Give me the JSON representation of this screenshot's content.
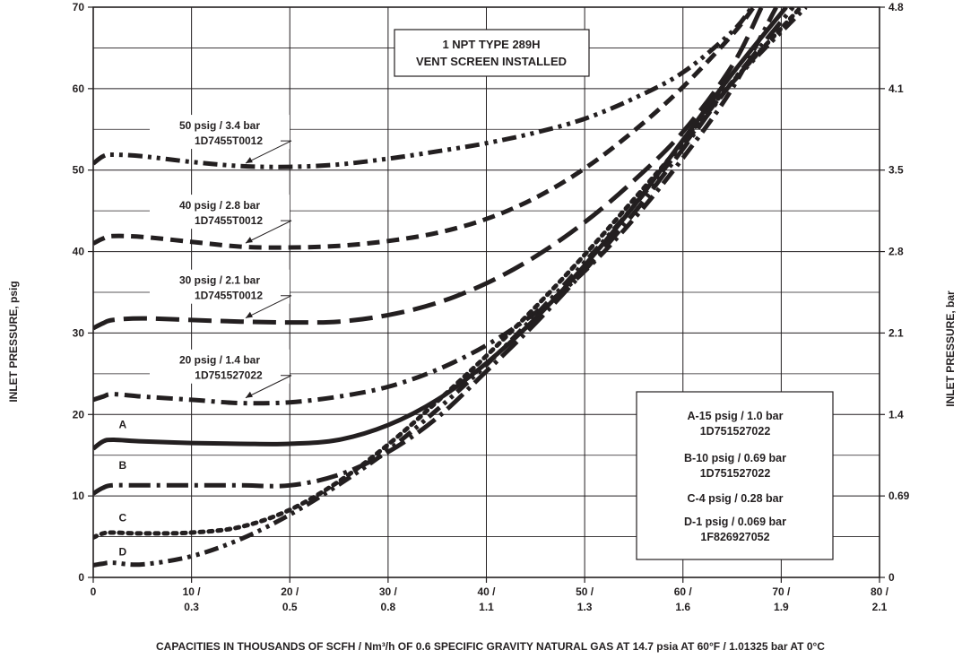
{
  "chart_data": {
    "type": "line",
    "title": "",
    "box_title_line1": "1 NPT TYPE 289H",
    "box_title_line2": "VENT SCREEN INSTALLED",
    "xlabel": "CAPACITIES IN THOUSANDS OF SCFH / Nm³/h OF 0.6 SPECIFIC GRAVITY NATURAL GAS AT 14.7 psia AT 60°F / 1.01325 bar AT 0°C",
    "ylabel_left": "INLET PRESSURE, psig",
    "ylabel_right": "INLET PRESSURE, bar",
    "xlim": [
      0,
      80
    ],
    "ylim": [
      0,
      70
    ],
    "grid": true,
    "x_ticks": [
      {
        "value": 0,
        "line1": "0",
        "line2": ""
      },
      {
        "value": 10,
        "line1": "10 /",
        "line2": "0.3"
      },
      {
        "value": 20,
        "line1": "20 /",
        "line2": "0.5"
      },
      {
        "value": 30,
        "line1": "30 /",
        "line2": "0.8"
      },
      {
        "value": 40,
        "line1": "40 /",
        "line2": "1.1"
      },
      {
        "value": 50,
        "line1": "50 /",
        "line2": "1.3"
      },
      {
        "value": 60,
        "line1": "60 /",
        "line2": "1.6"
      },
      {
        "value": 70,
        "line1": "70 /",
        "line2": "1.9"
      },
      {
        "value": 80,
        "line1": "80 /",
        "line2": "2.1"
      }
    ],
    "y_ticks_left": [
      {
        "value": 0,
        "label": "0"
      },
      {
        "value": 10,
        "label": "10"
      },
      {
        "value": 20,
        "label": "20"
      },
      {
        "value": 30,
        "label": "30"
      },
      {
        "value": 40,
        "label": "40"
      },
      {
        "value": 50,
        "label": "50"
      },
      {
        "value": 60,
        "label": "60"
      },
      {
        "value": 70,
        "label": "70"
      }
    ],
    "y_ticks_right": [
      {
        "value": 0,
        "label": "0"
      },
      {
        "value": 10,
        "label": "0.69"
      },
      {
        "value": 20,
        "label": "1.4"
      },
      {
        "value": 30,
        "label": "2.1"
      },
      {
        "value": 40,
        "label": "2.8"
      },
      {
        "value": 50,
        "label": "3.5"
      },
      {
        "value": 60,
        "label": "4.1"
      },
      {
        "value": 70,
        "label": "4.8"
      }
    ],
    "legend": {
      "placement": "bottom-right",
      "lines": [
        "A-15 psig / 1.0 bar",
        "1D751527022",
        "B-10 psig / 0.69 bar",
        "1D751527022",
        "C-4 psig / 0.28 bar",
        "D-1 psig / 0.069 bar",
        "1F826927052"
      ]
    },
    "annotations": [
      {
        "line1": "50 psig / 3.4 bar",
        "line2": "1D7455T0012",
        "arrow_to": [
          15.5,
          50.4
        ]
      },
      {
        "line1": "40 psig / 2.8 bar",
        "line2": "1D7455T0012",
        "arrow_to": [
          15.5,
          40.6
        ]
      },
      {
        "line1": "30 psig / 2.1 bar",
        "line2": "1D7455T0012",
        "arrow_to": [
          15.5,
          31.4
        ]
      },
      {
        "line1": "20 psig / 1.4 bar",
        "line2": "1D751527022",
        "arrow_to": [
          15.5,
          21.6
        ]
      }
    ],
    "series": [
      {
        "name": "50 psig / 3.4 bar",
        "style": "dash-dot-dot",
        "x": [
          0,
          1,
          2,
          5,
          10,
          15,
          20,
          25,
          30,
          35,
          40,
          45,
          50,
          55,
          60,
          65,
          67
        ],
        "y": [
          50.8,
          51.7,
          51.9,
          51.7,
          51.0,
          50.5,
          50.4,
          50.7,
          51.4,
          52.3,
          53.3,
          54.6,
          56.3,
          58.8,
          62.0,
          67.0,
          70.0
        ]
      },
      {
        "name": "40 psig / 2.8 bar",
        "style": "short-dash",
        "x": [
          0,
          1,
          2,
          5,
          10,
          15,
          20,
          25,
          30,
          35,
          40,
          45,
          50,
          55,
          60,
          65,
          67.2
        ],
        "y": [
          41.0,
          41.6,
          41.9,
          41.8,
          41.2,
          40.6,
          40.5,
          40.7,
          41.3,
          42.3,
          44.0,
          46.6,
          50.2,
          54.8,
          60.2,
          66.6,
          70.0
        ]
      },
      {
        "name": "30 psig / 2.1 bar",
        "style": "long-dash",
        "x": [
          0,
          1,
          2,
          5,
          10,
          15,
          20,
          25,
          30,
          35,
          40,
          45,
          50,
          55,
          60,
          65,
          68
        ],
        "y": [
          30.6,
          31.2,
          31.6,
          31.8,
          31.6,
          31.4,
          31.3,
          31.4,
          32.2,
          33.7,
          36.1,
          39.4,
          43.6,
          48.7,
          54.7,
          62.8,
          70.0
        ]
      },
      {
        "name": "20 psig / 1.4 bar",
        "style": "dash-dot",
        "x": [
          0,
          1,
          2,
          5,
          10,
          15,
          20,
          25,
          30,
          35,
          40,
          45,
          50,
          55,
          60,
          65,
          69.5
        ],
        "y": [
          21.8,
          22.2,
          22.5,
          22.2,
          21.8,
          21.4,
          21.5,
          22.2,
          23.4,
          25.5,
          28.5,
          32.5,
          37.6,
          44.0,
          51.5,
          60.0,
          70.0
        ]
      },
      {
        "name": "A",
        "style": "solid",
        "x": [
          0,
          1,
          2,
          5,
          10,
          15,
          20,
          25,
          30,
          35,
          40,
          45,
          50,
          55,
          60,
          65,
          70.5
        ],
        "y": [
          15.8,
          16.7,
          16.9,
          16.7,
          16.5,
          16.4,
          16.4,
          16.9,
          18.7,
          21.8,
          26.3,
          31.8,
          38.3,
          45.6,
          53.7,
          61.8,
          70.0
        ]
      },
      {
        "name": "B",
        "style": "long-dash-dot",
        "x": [
          0,
          1,
          2,
          5,
          10,
          15,
          20,
          25,
          30,
          35,
          40,
          45,
          50,
          55,
          60,
          65,
          71.2
        ],
        "y": [
          10.3,
          11.0,
          11.3,
          11.3,
          11.3,
          11.3,
          11.3,
          12.6,
          15.4,
          19.6,
          25.3,
          31.2,
          37.7,
          44.7,
          52.6,
          60.8,
          70.0
        ]
      },
      {
        "name": "C",
        "style": "dotted",
        "x": [
          0,
          1,
          2,
          5,
          10,
          15,
          20,
          25,
          30,
          35,
          40,
          45,
          50,
          55,
          60,
          65,
          72
        ],
        "y": [
          4.9,
          5.4,
          5.5,
          5.4,
          5.5,
          6.2,
          8.3,
          11.8,
          16.3,
          21.6,
          27.2,
          33.2,
          39.6,
          46.4,
          53.4,
          60.8,
          70.0
        ]
      },
      {
        "name": "D",
        "style": "dash-dot-dot",
        "x": [
          0,
          1,
          2,
          5,
          10,
          15,
          20,
          25,
          30,
          35,
          40,
          45,
          50,
          55,
          60,
          65,
          72.5
        ],
        "y": [
          1.5,
          1.7,
          1.8,
          1.6,
          2.6,
          4.7,
          7.7,
          11.4,
          15.6,
          20.6,
          26.1,
          32.2,
          38.7,
          45.6,
          53.0,
          60.7,
          70.0
        ]
      }
    ],
    "curve_labels": [
      {
        "text": "A",
        "x": 3,
        "y": 18.3
      },
      {
        "text": "B",
        "x": 3,
        "y": 13.3
      },
      {
        "text": "C",
        "x": 3,
        "y": 6.9
      },
      {
        "text": "D",
        "x": 3,
        "y": 2.7
      }
    ]
  }
}
